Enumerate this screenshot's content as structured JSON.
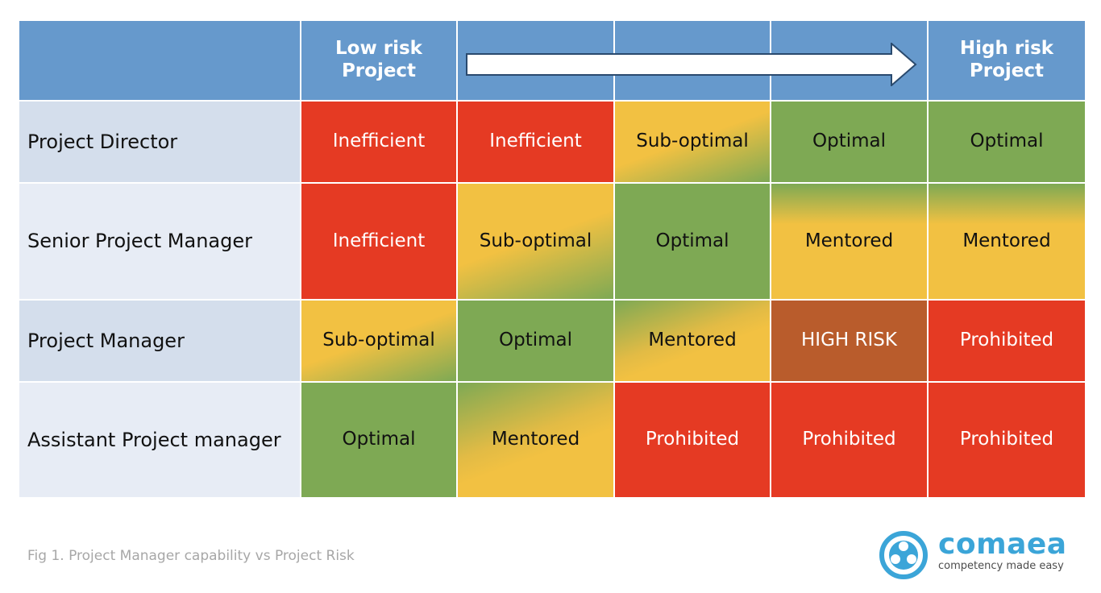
{
  "header": {
    "low_risk": "Low risk\nProject",
    "high_risk": "High risk\nProject"
  },
  "rows": [
    {
      "label": "Project Director",
      "cells": [
        "Inefficient",
        "Inefficient",
        "Sub-optimal",
        "Optimal",
        "Optimal"
      ]
    },
    {
      "label": "Senior Project Manager",
      "cells": [
        "Inefficient",
        "Sub-optimal",
        "Optimal",
        "Mentored",
        "Mentored"
      ]
    },
    {
      "label": "Project Manager",
      "cells": [
        "Sub-optimal",
        "Optimal",
        "Mentored",
        "HIGH RISK",
        "Prohibited"
      ]
    },
    {
      "label": "Assistant Project manager",
      "cells": [
        "Optimal",
        "Mentored",
        "Prohibited",
        "Prohibited",
        "Prohibited"
      ]
    }
  ],
  "caption": "Fig 1. Project Manager capability vs Project Risk",
  "logo": {
    "word": "comaea",
    "tagline": "competency made easy",
    "icon": "film-reel-icon"
  },
  "colors": {
    "header_blue": "#6699cc",
    "red": "#e53a23",
    "green": "#7ea954",
    "yellow": "#f2c142",
    "brown": "#b95c2c",
    "logo_blue": "#3ba5d8"
  }
}
